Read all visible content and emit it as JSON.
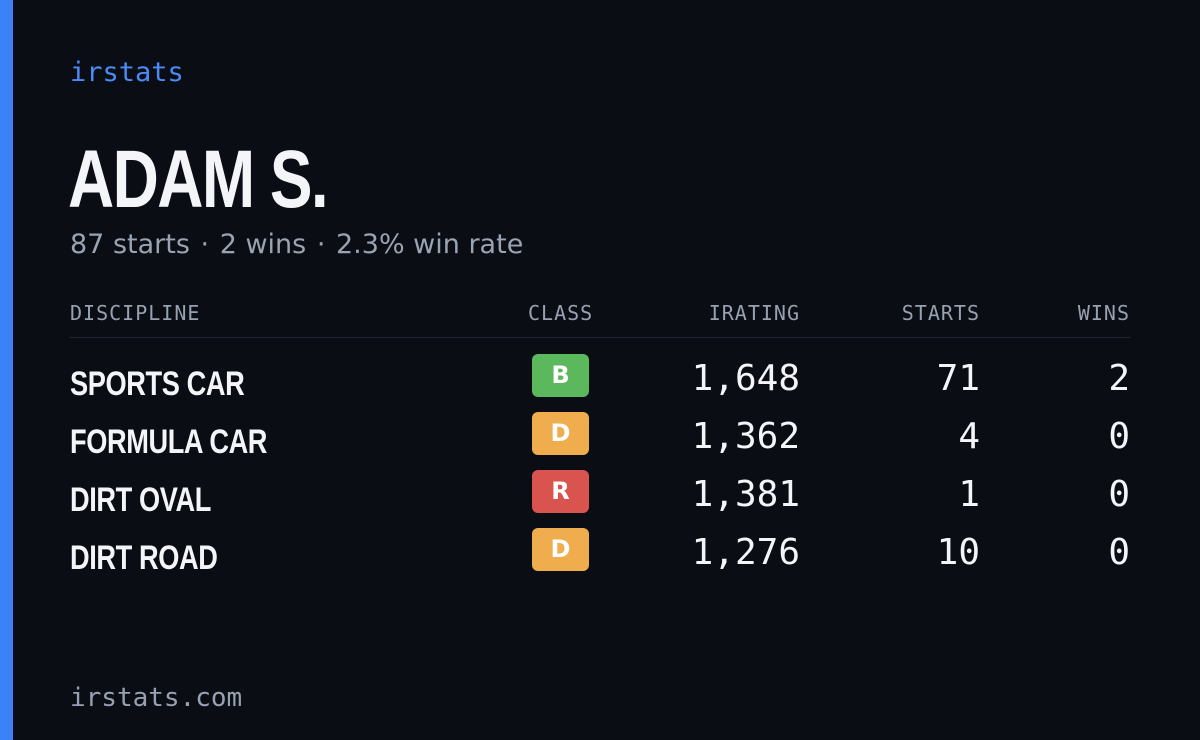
{
  "brand": "irstats",
  "driver": {
    "name": "ADAM S.",
    "starts_text": "87 starts",
    "wins_text": "2 wins",
    "win_rate_text": "2.3% win rate",
    "separator": "·"
  },
  "table": {
    "headers": {
      "discipline": "DISCIPLINE",
      "class": "CLASS",
      "irating": "IRATING",
      "starts": "STARTS",
      "wins": "WINS"
    },
    "rows": [
      {
        "discipline": "SPORTS CAR",
        "class": "B",
        "class_color": "#5cb85c",
        "irating": "1,648",
        "starts": "71",
        "wins": "2"
      },
      {
        "discipline": "FORMULA CAR",
        "class": "D",
        "class_color": "#f0ad4e",
        "irating": "1,362",
        "starts": "4",
        "wins": "0"
      },
      {
        "discipline": "DIRT OVAL",
        "class": "R",
        "class_color": "#d9534f",
        "irating": "1,381",
        "starts": "1",
        "wins": "0"
      },
      {
        "discipline": "DIRT ROAD",
        "class": "D",
        "class_color": "#f0ad4e",
        "irating": "1,276",
        "starts": "10",
        "wins": "0"
      }
    ]
  },
  "footer": {
    "url": "irstats.com"
  },
  "colors": {
    "accent": "#3b82f6",
    "background": "#0a0d14"
  }
}
